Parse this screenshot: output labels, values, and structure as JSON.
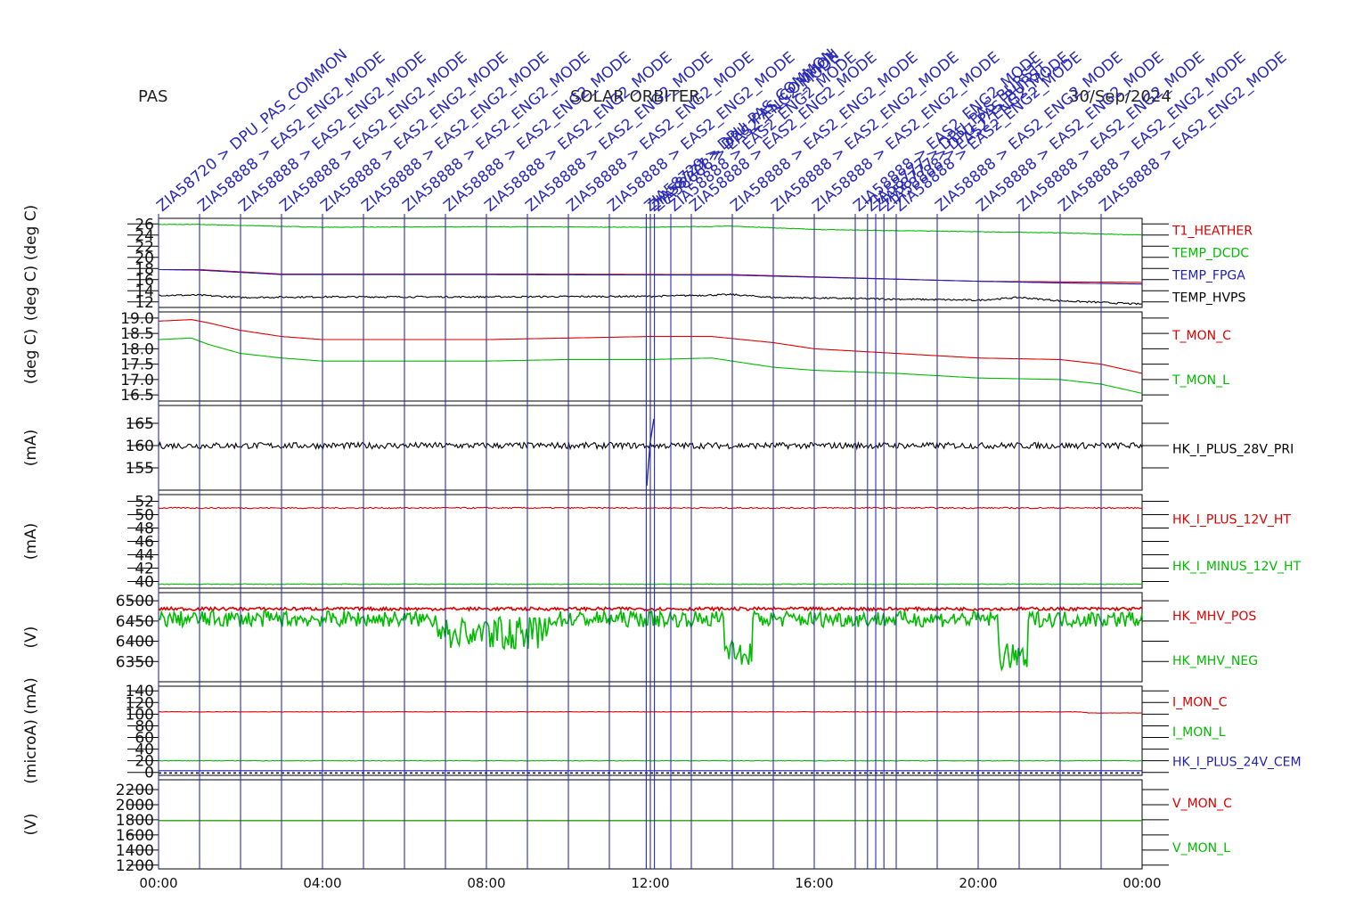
{
  "header": {
    "left": "PAS",
    "center": "SOLAR ORBITER",
    "right": "30/Sep/2024"
  },
  "colors": {
    "red": "#dd0000",
    "green": "#00bb00",
    "blue": "#1f1fb4",
    "black": "#000000",
    "event": "#2a2ab8"
  },
  "chart_data": [
    {
      "type": "line",
      "ylabel": "(deg C) (deg C)",
      "yticks": [
        12,
        14,
        16,
        18,
        20,
        22,
        24,
        26
      ],
      "ylim": [
        11,
        27
      ],
      "series": [
        {
          "name": "T1_HEATHER",
          "color": "#dd0000",
          "x": [
            0,
            1,
            3,
            8,
            14,
            20,
            22,
            24
          ],
          "y": [
            17.8,
            17.8,
            17.0,
            17.0,
            16.9,
            15.7,
            15.6,
            15.5
          ]
        },
        {
          "name": "TEMP_DCDC",
          "color": "#00bb00",
          "x": [
            0,
            1,
            4,
            8,
            12,
            14,
            16,
            18,
            20,
            22,
            24
          ],
          "y": [
            25.9,
            25.9,
            25.4,
            25.5,
            25.4,
            25.6,
            25.0,
            24.8,
            24.6,
            24.4,
            24.0
          ]
        },
        {
          "name": "TEMP_FPGA",
          "color": "#1f1fb4",
          "x": [
            0,
            1,
            3,
            8,
            14,
            20,
            22,
            24
          ],
          "y": [
            17.8,
            17.7,
            16.9,
            16.9,
            16.8,
            15.7,
            15.4,
            15.2
          ]
        },
        {
          "name": "TEMP_HVPS",
          "color": "#000000",
          "x": [
            0,
            1,
            2,
            4,
            8,
            12,
            14,
            15,
            18,
            20,
            21,
            22,
            24
          ],
          "y": [
            13.2,
            13.2,
            12.8,
            12.9,
            12.9,
            13.0,
            13.3,
            12.8,
            12.5,
            12.3,
            12.8,
            12.2,
            11.6
          ]
        }
      ]
    },
    {
      "type": "line",
      "ylabel": "(deg C)",
      "yticks": [
        16.5,
        17.0,
        17.5,
        18.0,
        18.5,
        19.0
      ],
      "ylabels": [
        "16.5",
        "17.0",
        "17.5",
        "18.0",
        "18.5",
        "19.0"
      ],
      "ylim": [
        16.3,
        19.2
      ],
      "series": [
        {
          "name": "T_MON_C",
          "color": "#dd0000",
          "x": [
            0,
            0.8,
            1.2,
            2,
            3,
            4,
            8,
            10,
            12,
            13.5,
            15,
            16,
            18,
            20,
            22,
            23,
            24
          ],
          "y": [
            18.9,
            18.95,
            18.85,
            18.6,
            18.4,
            18.3,
            18.3,
            18.35,
            18.4,
            18.4,
            18.2,
            18.0,
            17.85,
            17.7,
            17.65,
            17.5,
            17.2
          ]
        },
        {
          "name": "T_MON_L",
          "color": "#00bb00",
          "x": [
            0,
            0.8,
            1.2,
            2,
            3,
            4,
            8,
            10,
            12,
            13.5,
            15,
            16,
            18,
            20,
            22,
            23,
            24
          ],
          "y": [
            18.3,
            18.35,
            18.15,
            17.85,
            17.7,
            17.6,
            17.6,
            17.65,
            17.65,
            17.7,
            17.4,
            17.3,
            17.2,
            17.05,
            17.0,
            16.85,
            16.55
          ]
        }
      ]
    },
    {
      "type": "line",
      "ylabel": "(mA)",
      "yticks": [
        155,
        160,
        165
      ],
      "ylim": [
        150,
        169
      ],
      "series": [
        {
          "name": "HK_I_PLUS_28V_PRI",
          "color": "#000000",
          "x": [
            0,
            24
          ],
          "y": [
            160,
            160
          ]
        }
      ]
    },
    {
      "type": "line",
      "ylabel": "(mA)",
      "yticks": [
        40,
        42,
        44,
        46,
        48,
        50,
        52
      ],
      "ylim": [
        39,
        53
      ],
      "series": [
        {
          "name": "HK_I_PLUS_12V_HT",
          "color": "#dd0000",
          "x": [
            0,
            24
          ],
          "y": [
            51.0,
            51.0
          ]
        },
        {
          "name": "HK_I_MINUS_12V_HT",
          "color": "#00bb00",
          "x": [
            0,
            24
          ],
          "y": [
            39.6,
            39.6
          ]
        }
      ]
    },
    {
      "type": "line",
      "ylabel": "(V)",
      "yticks": [
        6350,
        6400,
        6450,
        6500
      ],
      "ylim": [
        6300,
        6520
      ],
      "series": [
        {
          "name": "HK_MHV_POS",
          "color": "#dd0000",
          "x": [
            0,
            24
          ],
          "y": [
            6480,
            6480
          ]
        },
        {
          "name": "HK_MHV_NEG",
          "color": "#00bb00",
          "x": [
            0,
            24
          ],
          "y": [
            6460,
            6460
          ]
        }
      ]
    },
    {
      "type": "line",
      "ylabel": "(microA) (mA)",
      "yticks": [
        0,
        20,
        40,
        60,
        80,
        100,
        120,
        140
      ],
      "ylim": [
        -5,
        148
      ],
      "series": [
        {
          "name": "I_MON_C",
          "color": "#dd0000",
          "x": [
            0,
            22.5,
            22.7,
            24
          ],
          "y": [
            104,
            104,
            102,
            102
          ]
        },
        {
          "name": "I_MON_L",
          "color": "#00bb00",
          "x": [
            0,
            24
          ],
          "y": [
            20,
            20
          ]
        },
        {
          "name": "HK_I_PLUS_24V_CEM",
          "color": "#1f1fb4",
          "x": [
            0,
            24
          ],
          "y": [
            3,
            3
          ]
        }
      ]
    },
    {
      "type": "line",
      "ylabel": "(V)",
      "yticks": [
        1200,
        1400,
        1600,
        1800,
        2000,
        2200
      ],
      "ylim": [
        1150,
        2330
      ],
      "series": [
        {
          "name": "V_MON_C",
          "color": "#dd0000",
          "x": [
            0,
            24
          ],
          "y": [
            1790,
            1790
          ]
        },
        {
          "name": "V_MON_L",
          "color": "#00bb00",
          "x": [
            0,
            24
          ],
          "y": [
            1790,
            1790
          ]
        }
      ]
    }
  ],
  "time_axis": {
    "xlim": [
      0,
      24
    ],
    "ticks": [
      0,
      4,
      8,
      12,
      16,
      20,
      24
    ],
    "tick_labels": [
      "00:00",
      "04:00",
      "08:00",
      "12:00",
      "16:00",
      "20:00",
      "00:00"
    ]
  },
  "events": [
    {
      "t": 0.0,
      "label": "ZIA58720 > DPU_PAS_COMMON"
    },
    {
      "t": 1.0,
      "label": "ZIA58888 > EAS2_ENG2_MODE"
    },
    {
      "t": 2.0,
      "label": "ZIA58888 > EAS2_ENG2_MODE"
    },
    {
      "t": 3.0,
      "label": "ZIA58888 > EAS2_ENG2_MODE"
    },
    {
      "t": 4.0,
      "label": "ZIA58888 > EAS2_ENG2_MODE"
    },
    {
      "t": 5.0,
      "label": "ZIA58888 > EAS2_ENG2_MODE"
    },
    {
      "t": 6.0,
      "label": "ZIA58888 > EAS2_ENG2_MODE"
    },
    {
      "t": 7.0,
      "label": "ZIA58888 > EAS2_ENG2_MODE"
    },
    {
      "t": 8.0,
      "label": "ZIA58888 > EAS2_ENG2_MODE"
    },
    {
      "t": 9.0,
      "label": "ZIA58888 > EAS2_ENG2_MODE"
    },
    {
      "t": 10.0,
      "label": "ZIA58888 > EAS2_ENG2_MODE"
    },
    {
      "t": 11.0,
      "label": "ZIA58888 > EAS2_ENG2_MODE"
    },
    {
      "t": 11.9,
      "label": "ZIA58729 > DPU_PAS_COMMON"
    },
    {
      "t": 12.0,
      "label": "ZIA58777 > DPU_PAS_COMMON"
    },
    {
      "t": 12.1,
      "label": "ZIA58888 > EAS2_ENG2_MODE"
    },
    {
      "t": 12.5,
      "label": "ZIA58888 > EAS2_ENG2_MODE"
    },
    {
      "t": 13.0,
      "label": "ZIA58888 > EAS2_ENG2_MODE"
    },
    {
      "t": 14.0,
      "label": "ZIA58888 > EAS2_ENG2_MODE"
    },
    {
      "t": 15.0,
      "label": "ZIA58888 > EAS2_ENG2_MODE"
    },
    {
      "t": 16.0,
      "label": "ZIA58888 > EAS2_ENG2_MODE"
    },
    {
      "t": 17.0,
      "label": "ZIA58888 > EAS2_ENG2_MODE"
    },
    {
      "t": 17.3,
      "label": "ZIA58777 > DPU_PAS_BURST"
    },
    {
      "t": 17.5,
      "label": "ZIA58777 > DPU_PAS_BURST"
    },
    {
      "t": 17.7,
      "label": "ZIA58888 > EAS2_ENG2_MODE"
    },
    {
      "t": 18.0,
      "label": "ZIA58888 > EAS2_ENG2_MODE"
    },
    {
      "t": 19.0,
      "label": "ZIA58888 > EAS2_ENG2_MODE"
    },
    {
      "t": 20.0,
      "label": "ZIA58888 > EAS2_ENG2_MODE"
    },
    {
      "t": 21.0,
      "label": "ZIA58888 > EAS2_ENG2_MODE"
    },
    {
      "t": 22.0,
      "label": "ZIA58888 > EAS2_ENG2_MODE"
    },
    {
      "t": 23.0,
      "label": "ZIA58888 > EAS2_ENG2_MODE"
    }
  ]
}
